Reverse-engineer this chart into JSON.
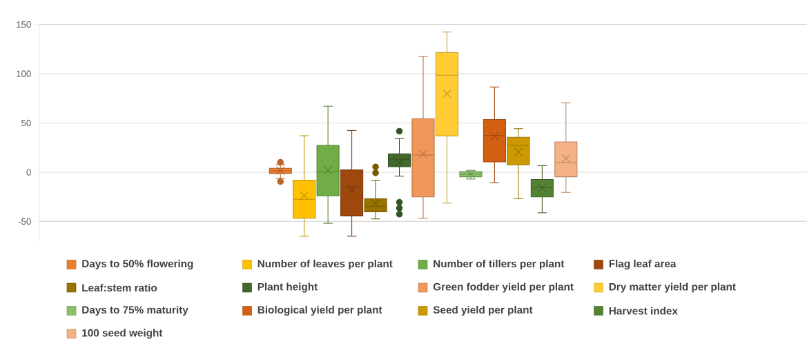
{
  "chart_data": {
    "type": "box",
    "categories": [
      null
    ],
    "ylim": [
      -70,
      150
    ],
    "yticks": [
      -50,
      0,
      50,
      100,
      150
    ],
    "grid": "y",
    "legend": "bottom",
    "series": [
      {
        "name": "Days to 50% flowering",
        "color": "#ed7d31",
        "boxes": [
          {
            "low": -6.3,
            "q1": -1.2,
            "median": 1.4,
            "q3": 4,
            "high": 7.7,
            "mean": 1.5,
            "outliers": [
              10,
              -9.5
            ]
          }
        ]
      },
      {
        "name": "Number of leaves per plant",
        "color": "#ffc000",
        "boxes": [
          {
            "low": -65,
            "q1": -46.8,
            "median": -27.5,
            "q3": -8.1,
            "high": 37,
            "mean": -23.8
          }
        ]
      },
      {
        "name": "Number of tillers per plant",
        "color": "#70ad47",
        "boxes": [
          {
            "low": -51.9,
            "q1": -24,
            "median": 0.5,
            "q3": 27.2,
            "high": 67,
            "mean": 2.3
          }
        ]
      },
      {
        "name": "Flag leaf area",
        "color": "#9e480e",
        "boxes": [
          {
            "low": -65,
            "q1": -44.4,
            "median": -14.7,
            "q3": 2.3,
            "high": 42.3,
            "mean": -17.4
          }
        ]
      },
      {
        "name": "Leaf:stem ratio",
        "color": "#997300",
        "boxes": [
          {
            "low": -47.4,
            "q1": -40.2,
            "median": -34.9,
            "q3": -27,
            "high": -8.1,
            "mean": -31.6,
            "outliers": [
              5.3,
              -0.7
            ]
          }
        ]
      },
      {
        "name": "Plant height",
        "color": "#43682b",
        "boxes": [
          {
            "low": -4,
            "q1": 5.6,
            "median": 13.3,
            "q3": 18.6,
            "high": 34.2,
            "mean": 9.8,
            "outliers": [
              41.6,
              -30.5,
              -36.5,
              -42.6
            ]
          }
        ]
      },
      {
        "name": "Green fodder yield per plant",
        "color": "#f1975a",
        "boxes": [
          {
            "low": -46.8,
            "q1": -25.1,
            "median": 17.4,
            "q3": 54.4,
            "high": 117.7,
            "mean": 18.6
          }
        ]
      },
      {
        "name": "Dry matter yield per plant",
        "color": "#ffcd33",
        "boxes": [
          {
            "low": -31.4,
            "q1": 36.8,
            "median": 98.4,
            "q3": 121.4,
            "high": 142.4,
            "mean": 79.6
          }
        ]
      },
      {
        "name": "Days to 75% maturity",
        "color": "#8cc168",
        "boxes": [
          {
            "low": -7,
            "q1": -4.7,
            "median": -1.9,
            "q3": 0.7,
            "high": 1.9,
            "mean": -2
          }
        ]
      },
      {
        "name": "Biological yield per plant",
        "color": "#d26012",
        "boxes": [
          {
            "low": -10.7,
            "q1": 10.5,
            "median": 37.2,
            "q3": 53.5,
            "high": 86.5,
            "mean": 36.5
          }
        ]
      },
      {
        "name": "Seed yield per plant",
        "color": "#cc9a00",
        "boxes": [
          {
            "low": -26.8,
            "q1": 7.5,
            "median": 27.2,
            "q3": 35.4,
            "high": 44.2,
            "mean": 20.5
          }
        ]
      },
      {
        "name": "Harvest index",
        "color": "#548235",
        "boxes": [
          {
            "low": -41.2,
            "q1": -25.1,
            "median": -15.6,
            "q3": -7.4,
            "high": 6.7,
            "mean": -15.8
          }
        ]
      },
      {
        "name": "100 seed weight",
        "color": "#f4b183",
        "boxes": [
          {
            "low": -20.5,
            "q1": -4.7,
            "median": 9.8,
            "q3": 30.7,
            "high": 70.5,
            "mean": 14
          }
        ]
      }
    ]
  }
}
